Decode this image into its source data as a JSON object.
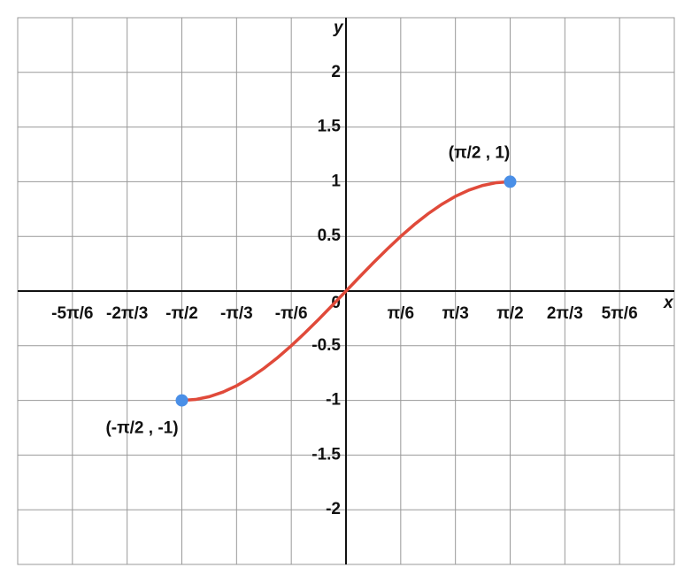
{
  "chart_data": {
    "type": "line",
    "x_label": "x",
    "y_label": "y",
    "xlim": [
      -3.1416,
      3.1416
    ],
    "ylim": [
      -2.5,
      2.5
    ],
    "xticks": [
      {
        "value": -2.618,
        "label": "-5π/6"
      },
      {
        "value": -2.0944,
        "label": "-2π/3"
      },
      {
        "value": -1.5708,
        "label": "-π/2"
      },
      {
        "value": -1.0472,
        "label": "-π/3"
      },
      {
        "value": -0.5236,
        "label": "-π/6"
      },
      {
        "value": 0,
        "label": "0"
      },
      {
        "value": 0.5236,
        "label": "π/6"
      },
      {
        "value": 1.0472,
        "label": "π/3"
      },
      {
        "value": 1.5708,
        "label": "π/2"
      },
      {
        "value": 2.0944,
        "label": "2π/3"
      },
      {
        "value": 2.618,
        "label": "5π/6"
      }
    ],
    "yticks": [
      -2,
      -1.5,
      -1,
      -0.5,
      0.5,
      1,
      1.5,
      2
    ],
    "grid": true,
    "series": [
      {
        "color": "#e04a3a",
        "x": [
          -1.5708,
          -1.4399,
          -1.309,
          -1.1781,
          -1.0472,
          -0.9163,
          -0.7854,
          -0.6545,
          -0.5236,
          -0.3927,
          -0.2618,
          -0.1309,
          0,
          0.1309,
          0.2618,
          0.3927,
          0.5236,
          0.6545,
          0.7854,
          0.9163,
          1.0472,
          1.1781,
          1.309,
          1.4399,
          1.5708
        ],
        "values": [
          -1,
          -0.9914,
          -0.9659,
          -0.9239,
          -0.866,
          -0.7934,
          -0.7071,
          -0.6088,
          -0.5,
          -0.3827,
          -0.2588,
          -0.1305,
          0,
          0.1305,
          0.2588,
          0.3827,
          0.5,
          0.6088,
          0.7071,
          0.7934,
          0.866,
          0.9239,
          0.9659,
          0.9914,
          1
        ]
      },
      {
        "color": "#4a8fe7",
        "x": [
          -1.5708,
          1.5708
        ],
        "values": [
          -1,
          1
        ]
      }
    ],
    "annotations": [
      "(-π/2 , -1)",
      "(π/2 , 1)"
    ]
  }
}
